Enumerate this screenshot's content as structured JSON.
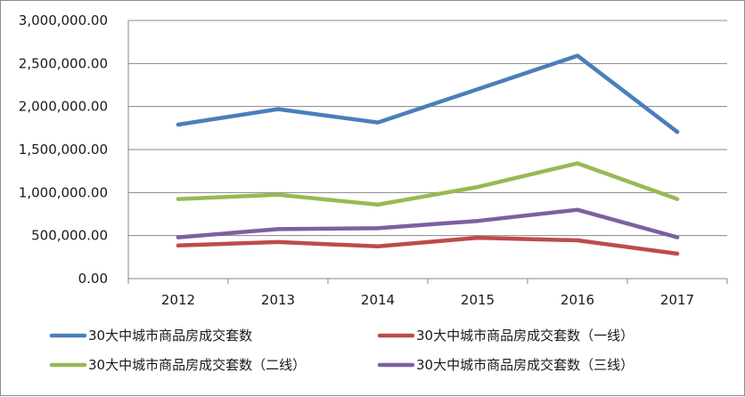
{
  "chart_data": {
    "type": "line",
    "categories": [
      "2012",
      "2013",
      "2014",
      "2015",
      "2016",
      "2017"
    ],
    "ylim": [
      0,
      3000000
    ],
    "yticks": [
      0,
      500000,
      1000000,
      1500000,
      2000000,
      2500000,
      3000000
    ],
    "ytick_labels": [
      "0.00",
      "500,000.00",
      "1,000,000.00",
      "1,500,000.00",
      "2,000,000.00",
      "2,500,000.00",
      "3,000,000.00"
    ],
    "grid": true,
    "legend_position": "bottom",
    "series": [
      {
        "name": "30大中城市商品房成交套数",
        "color": "#4a7ebb",
        "values": [
          1790000,
          1970000,
          1815000,
          2200000,
          2590000,
          1705000
        ]
      },
      {
        "name": "30大中城市商品房成交套数（一线）",
        "color": "#be4b48",
        "values": [
          385000,
          425000,
          375000,
          475000,
          445000,
          290000
        ]
      },
      {
        "name": "30大中城市商品房成交套数（二线）",
        "color": "#98b954",
        "values": [
          925000,
          975000,
          860000,
          1065000,
          1340000,
          925000
        ]
      },
      {
        "name": "30大中城市商品房成交套数（三线）",
        "color": "#7d60a0",
        "values": [
          480000,
          575000,
          585000,
          670000,
          800000,
          480000
        ]
      }
    ]
  }
}
